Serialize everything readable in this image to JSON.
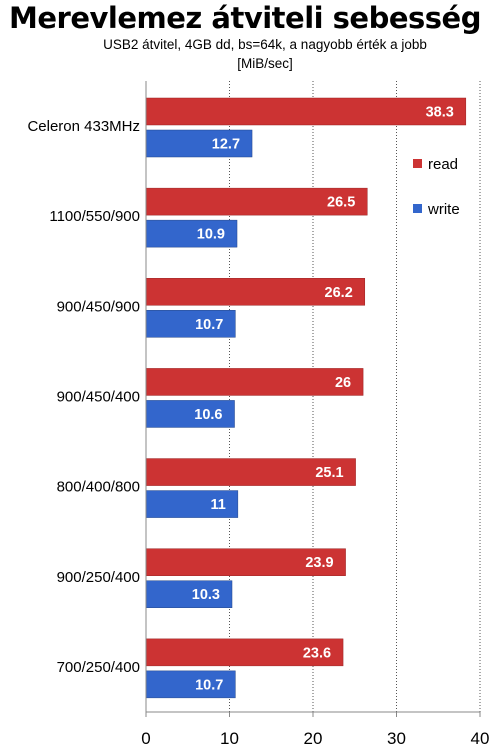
{
  "chart_data": {
    "type": "bar",
    "orientation": "horizontal",
    "title": "Merevlemez átviteli sebesség",
    "subtitle": "USB2 átvitel, 4GB dd, bs=64k, a nagyobb érték a jobb",
    "unit_label": "[MiB/sec]",
    "categories": [
      "Celeron 433MHz",
      "1100/550/900",
      "900/450/900",
      "900/450/400",
      "800/400/800",
      "900/250/400",
      "700/250/400"
    ],
    "series": [
      {
        "name": "read",
        "color": "#cc3333",
        "values": [
          38.3,
          26.5,
          26.2,
          26,
          25.1,
          23.9,
          23.6
        ]
      },
      {
        "name": "write",
        "color": "#3366cc",
        "values": [
          12.7,
          10.9,
          10.7,
          10.6,
          11,
          10.3,
          10.7
        ]
      }
    ],
    "xlim": [
      0,
      40
    ],
    "xticks": [
      0,
      10,
      20,
      30,
      40
    ],
    "grid": "vertical dotted",
    "legend_position": "right"
  }
}
